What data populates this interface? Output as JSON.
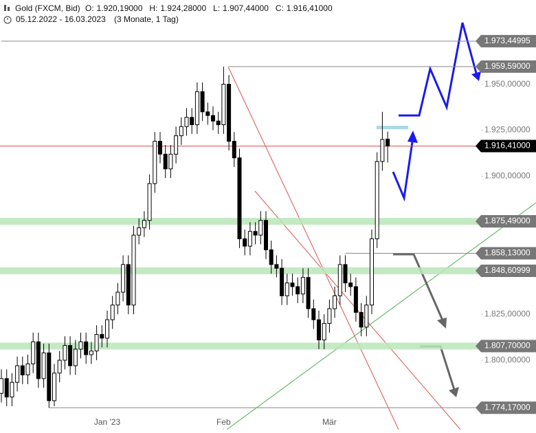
{
  "chart_data": {
    "type": "candlestick",
    "title": "Gold (FXCM, Bid)",
    "ohlc_header": [
      {
        "key": "O:",
        "value": "1.920,19000"
      },
      {
        "key": "H:",
        "value": "1.924,28000"
      },
      {
        "key": "L:",
        "value": "1.907,44000"
      },
      {
        "key": "C:",
        "value": "1.916,41000"
      }
    ],
    "date_range": "05.12.2022 - 16.03.2023",
    "period": "(3 Monate, 1 Tag)",
    "open": [
      1782,
      1790,
      1780,
      1788,
      1797,
      1792,
      1798,
      1810,
      1790,
      1804,
      1778,
      1793,
      1800,
      1808,
      1797,
      1806,
      1810,
      1803,
      1805,
      1814,
      1812,
      1822,
      1830,
      1837,
      1852,
      1830,
      1868,
      1872,
      1876,
      1896,
      1919,
      1912,
      1904,
      1912,
      1922,
      1927,
      1932,
      1928,
      1946,
      1935,
      1933,
      1930,
      1928,
      1950,
      1919,
      1910,
      1866,
      1862,
      1870,
      1868,
      1876,
      1860,
      1852,
      1850,
      1835,
      1842,
      1840,
      1836,
      1845,
      1828,
      1822,
      1811,
      1820,
      1828,
      1835,
      1852,
      1842,
      1840,
      1826,
      1818,
      1830,
      1866,
      1908,
      1920.19
    ],
    "high": [
      1795,
      1795,
      1793,
      1802,
      1802,
      1803,
      1815,
      1815,
      1809,
      1809,
      1798,
      1805,
      1813,
      1813,
      1811,
      1815,
      1815,
      1810,
      1819,
      1819,
      1827,
      1835,
      1842,
      1857,
      1857,
      1873,
      1877,
      1881,
      1901,
      1924,
      1924,
      1917,
      1917,
      1927,
      1932,
      1937,
      1937,
      1951,
      1951,
      1940,
      1938,
      1935,
      1959.59,
      1955,
      1924,
      1915,
      1871,
      1875,
      1875,
      1881,
      1881,
      1865,
      1857,
      1855,
      1847,
      1847,
      1845,
      1850,
      1850,
      1833,
      1827,
      1825,
      1833,
      1840,
      1857,
      1857,
      1847,
      1845,
      1831,
      1835,
      1871,
      1913,
      1935,
      1924.28
    ],
    "low": [
      1777,
      1775,
      1775,
      1783,
      1787,
      1787,
      1793,
      1785,
      1785,
      1774.17,
      1775,
      1788,
      1795,
      1792,
      1792,
      1801,
      1798,
      1798,
      1800,
      1807,
      1807,
      1817,
      1825,
      1832,
      1825,
      1825,
      1863,
      1867,
      1871,
      1891,
      1907,
      1899,
      1899,
      1907,
      1917,
      1922,
      1923,
      1923,
      1930,
      1928,
      1925,
      1923,
      1923,
      1914,
      1905,
      1861,
      1857,
      1857,
      1863,
      1863,
      1855,
      1847,
      1845,
      1830,
      1830,
      1835,
      1831,
      1831,
      1823,
      1817,
      1806,
      1806,
      1815,
      1823,
      1830,
      1837,
      1835,
      1821,
      1813,
      1813,
      1825,
      1861,
      1903,
      1907.44
    ],
    "close": [
      1790,
      1780,
      1788,
      1797,
      1792,
      1798,
      1810,
      1790,
      1804,
      1778,
      1793,
      1800,
      1808,
      1797,
      1806,
      1810,
      1803,
      1805,
      1814,
      1812,
      1822,
      1830,
      1837,
      1852,
      1830,
      1868,
      1872,
      1876,
      1896,
      1919,
      1912,
      1904,
      1912,
      1922,
      1927,
      1932,
      1928,
      1946,
      1935,
      1933,
      1930,
      1928,
      1950,
      1919,
      1910,
      1866,
      1862,
      1870,
      1868,
      1876,
      1860,
      1852,
      1850,
      1835,
      1842,
      1840,
      1836,
      1845,
      1828,
      1822,
      1811,
      1820,
      1828,
      1835,
      1852,
      1842,
      1840,
      1826,
      1818,
      1830,
      1866,
      1908,
      1920,
      1916.41
    ],
    "up_color": "#ffffff",
    "down_color": "#000000",
    "ylim": [
      1762.3,
      1995.8
    ],
    "yticks": [
      {
        "value": 1800,
        "label": "1.800,00000"
      },
      {
        "value": 1825,
        "label": "1.825,00000"
      },
      {
        "value": 1900,
        "label": "1.900,00000"
      },
      {
        "value": 1925,
        "label": "1.925,00000"
      },
      {
        "value": 1950,
        "label": "1.950,00000"
      }
    ],
    "xticks": [
      {
        "value": 20,
        "label": "Jan '23"
      },
      {
        "value": 42,
        "label": "Feb"
      },
      {
        "value": 62,
        "label": "Mär"
      }
    ],
    "levels": [
      {
        "value": 1973.44995,
        "label": "1.973,44995",
        "kind": "line",
        "start": 0
      },
      {
        "value": 1959.59,
        "label": "1.959,59000",
        "kind": "line",
        "start": 43
      },
      {
        "value": 1916.41,
        "label": "1.916,41000",
        "kind": "current",
        "start": 0
      },
      {
        "value": 1875.49,
        "label": "1.875,49000",
        "kind": "band",
        "start": 0
      },
      {
        "value": 1858.13,
        "label": "1.858,13000",
        "kind": "line",
        "start": 65
      },
      {
        "value": 1848.60999,
        "label": "1.848,60999",
        "kind": "band",
        "start": 0
      },
      {
        "value": 1807.7,
        "label": "1.807,70000",
        "kind": "band",
        "start": 0
      },
      {
        "value": 1774.17,
        "label": "1.774,17000",
        "kind": "line",
        "start": 9
      }
    ]
  }
}
